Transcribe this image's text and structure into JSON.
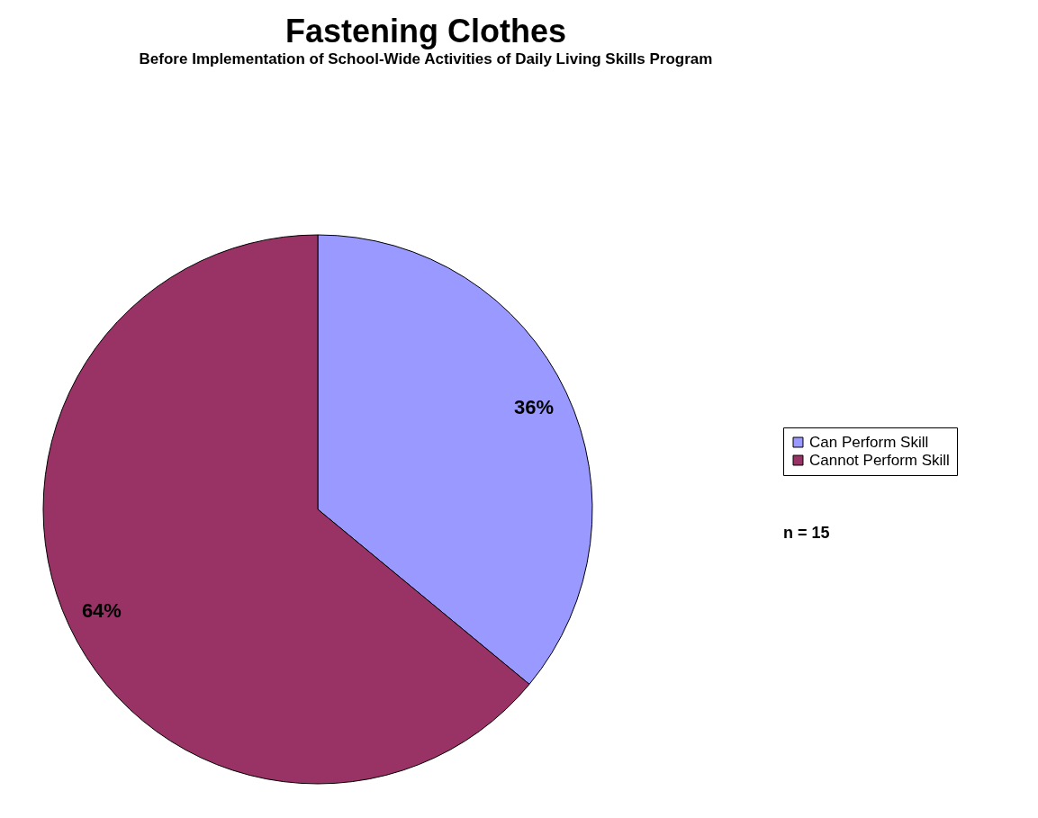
{
  "chart_data": {
    "type": "pie",
    "title": "Fastening Clothes",
    "subtitle": "Before Implementation of School-Wide Activities of Daily Living Skills Program",
    "categories": [
      "Can Perform Skill",
      "Cannot Perform Skill"
    ],
    "values": [
      36,
      64
    ],
    "value_labels": [
      "36%",
      "64%"
    ],
    "colors": [
      "#9999ff",
      "#993366"
    ],
    "legend": "right",
    "annotations": [
      "n = 15"
    ]
  }
}
